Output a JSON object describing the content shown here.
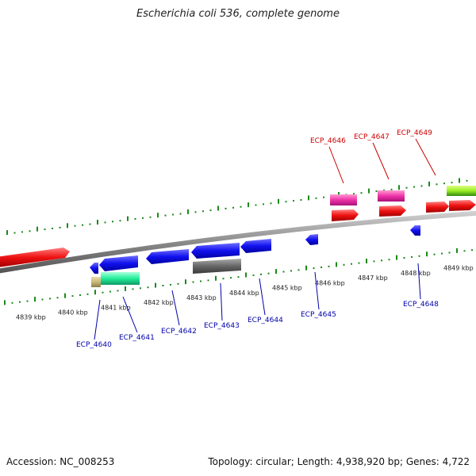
{
  "title": "Escherichia coli 536, complete genome",
  "footer": {
    "accession": "Accession: NC_008253",
    "summary": "Topology: circular; Length: 4,938,920 bp; Genes: 4,722"
  },
  "colors": {
    "backbone": "#8a8a8a",
    "ticks": "#1a8a1a",
    "forward_cds": "#ee1111",
    "reverse_cds": "#1111ee",
    "rna": "#ee33aa",
    "pseudogene": "#666666",
    "misc_feature_green": "#22ee99",
    "misc_feature_tan": "#c8b878",
    "lime": "#99ee22",
    "label_forward": "#cc0000",
    "label_reverse": "#0000aa"
  },
  "axis": {
    "unit": "kbp",
    "ticks": [
      {
        "value": 4839,
        "label": "4839 kbp"
      },
      {
        "value": 4840,
        "label": "4840 kbp"
      },
      {
        "value": 4841,
        "label": "4841 kbp"
      },
      {
        "value": 4842,
        "label": "4842 kbp"
      },
      {
        "value": 4843,
        "label": "4843 kbp"
      },
      {
        "value": 4844,
        "label": "4844 kbp"
      },
      {
        "value": 4845,
        "label": "4845 kbp"
      },
      {
        "value": 4846,
        "label": "4846 kbp"
      },
      {
        "value": 4847,
        "label": "4847 kbp"
      },
      {
        "value": 4848,
        "label": "4848 kbp"
      },
      {
        "value": 4849,
        "label": "4849 kbp"
      }
    ]
  },
  "gene_labels": {
    "forward": [
      "ECP_4646",
      "ECP_4647",
      "ECP_4649"
    ],
    "reverse": [
      "ECP_4640",
      "ECP_4641",
      "ECP_4642",
      "ECP_4643",
      "ECP_4644",
      "ECP_4645",
      "ECP_4648"
    ]
  }
}
